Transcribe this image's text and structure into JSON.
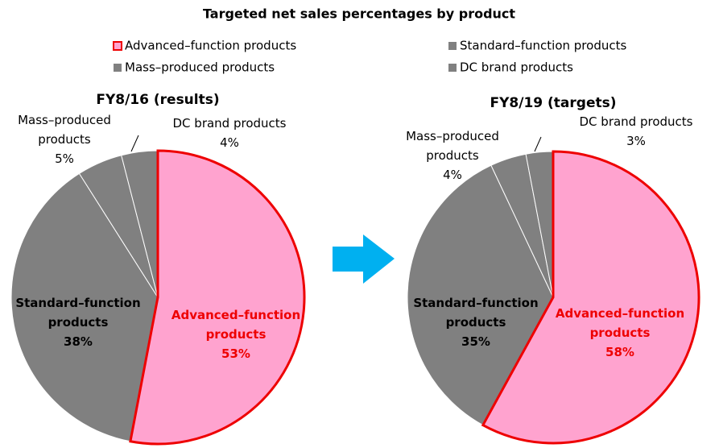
{
  "title": "Targeted net sales percentages by product",
  "chart_data": [
    {
      "type": "pie",
      "title": "FY8/16 (results)",
      "categories": [
        "Advanced–function products",
        "Standard–function products",
        "Mass–produced products",
        "DC brand products"
      ],
      "values": [
        53,
        38,
        5,
        4
      ],
      "value_labels": [
        "53%",
        "38%",
        "5%",
        "4%"
      ],
      "colors": [
        "#ffa3cf",
        "#808080",
        "#808080",
        "#808080"
      ],
      "edgecolors": [
        "#ee0000",
        "#ffffff",
        "#ffffff",
        "#ffffff"
      ],
      "label_colors": [
        "#ee0000",
        "#000000",
        "#000000",
        "#000000"
      ]
    },
    {
      "type": "pie",
      "title": "FY8/19 (targets)",
      "categories": [
        "Advanced–function products",
        "Standard–function products",
        "Mass–produced products",
        "DC brand products"
      ],
      "values": [
        58,
        35,
        4,
        3
      ],
      "value_labels": [
        "58%",
        "35%",
        "4%",
        "3%"
      ],
      "colors": [
        "#ffa3cf",
        "#808080",
        "#808080",
        "#808080"
      ],
      "edgecolors": [
        "#ee0000",
        "#ffffff",
        "#ffffff",
        "#ffffff"
      ],
      "label_colors": [
        "#ee0000",
        "#000000",
        "#000000",
        "#000000"
      ]
    }
  ]
}
